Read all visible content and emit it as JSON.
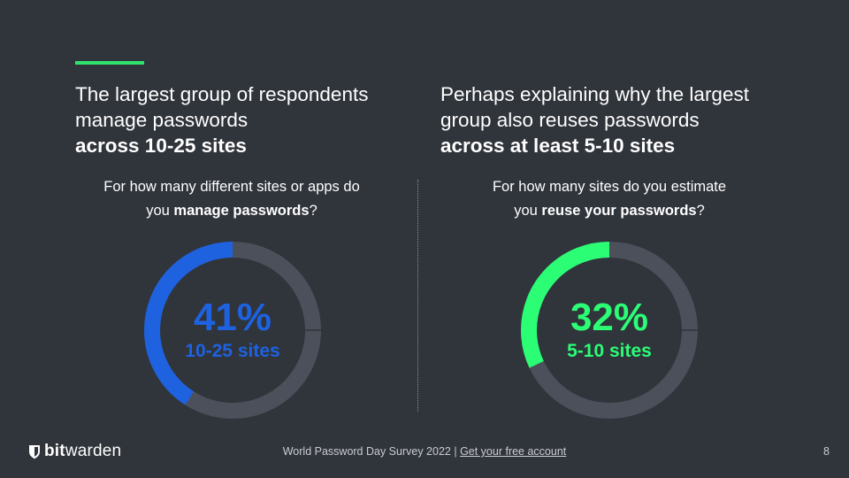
{
  "left": {
    "heading_line1": "The largest group of respondents",
    "heading_line2": "manage passwords",
    "heading_bold": "across 10-25 sites",
    "question_pre": "For how many different sites or apps do",
    "question_you": "you ",
    "question_bold": "manage passwords",
    "question_post": "?",
    "percent_value": 0.41,
    "percent_label": "41%",
    "sub_label": "10-25 sites",
    "color": "#1e62e0"
  },
  "right": {
    "heading_line1": "Perhaps explaining why the largest",
    "heading_line2": "group also reuses passwords",
    "heading_bold": "across at least 5-10 sites",
    "question_pre": "For how many sites do you estimate",
    "question_you": "you ",
    "question_bold": "reuse your passwords",
    "question_post": "?",
    "percent_value": 0.32,
    "percent_label": "32%",
    "sub_label": "5-10 sites",
    "color": "#2bfd75"
  },
  "ring_track_color": "#4c505b",
  "accent_color": "#2fe36f",
  "footer": {
    "logo_bold": "bit",
    "logo_light": "warden",
    "logo_icon": "shield-icon",
    "survey_text": "World Password Day Survey 2022 | ",
    "link_text": "Get your free account",
    "page_number": "8"
  }
}
